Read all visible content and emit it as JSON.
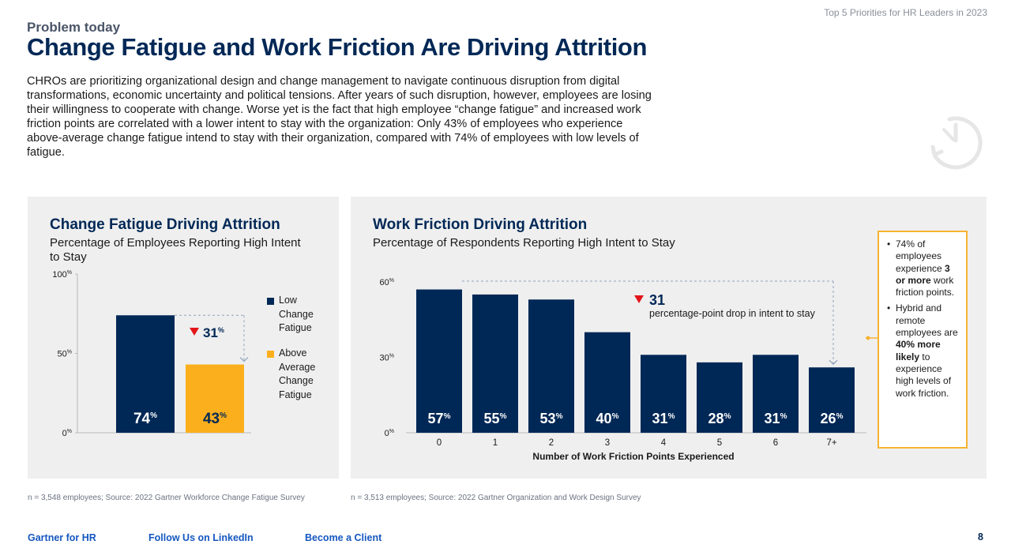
{
  "header": {
    "doc_title": "Top 5 Priorities for HR Leaders in 2023",
    "eyebrow": "Problem today",
    "headline": "Change Fatigue and Work Friction Are Driving Attrition",
    "intro": "CHROs are prioritizing organizational design and change management to navigate continuous disruption from digital transformations, economic uncertainty and political tensions. After years of such disruption, however, employees are losing their willingness to cooperate with change. Worse yet is the fact that high employee “change fatigue” and increased work friction points are correlated with a lower intent to stay with the organization: Only 43% of employees who experience above-average change fatigue intend to stay with their organization, compared with 74% of employees with low levels of fatigue."
  },
  "icons": {
    "timer": "timer-icon",
    "drop_arrow": "down-triangle-icon"
  },
  "colors": {
    "navy": "#002856",
    "amber": "#fbaf1c",
    "drop_red": "#e3151a",
    "panel_bg": "#efefef",
    "link": "#1557c0"
  },
  "chart_data": [
    {
      "type": "bar",
      "title": "Change Fatigue Driving Attrition",
      "subtitle": "Percentage of Employees Reporting High Intent to Stay",
      "categories": [
        "Low Change Fatigue",
        "Above Average Change Fatigue"
      ],
      "values": [
        74,
        43
      ],
      "value_labels": [
        "74",
        "43"
      ],
      "value_suffix": "%",
      "bar_colors": [
        "#002856",
        "#fbaf1c"
      ],
      "yticks": [
        {
          "value": 0,
          "label": "0"
        },
        {
          "value": 50,
          "label": "50"
        },
        {
          "value": 100,
          "label": "100"
        }
      ],
      "ytick_suffix": "%",
      "ylim": [
        0,
        100
      ],
      "legend": [
        "Low Change Fatigue",
        "Above Average Change Fatigue"
      ],
      "legend_lines": [
        [
          "Low",
          "Change",
          "Fatigue"
        ],
        [
          "Above",
          "Average",
          "Change",
          "Fatigue"
        ]
      ],
      "legend_position": "right",
      "drop_annotation": {
        "value": "31",
        "suffix": "%"
      },
      "xlabel": "",
      "ylabel": ""
    },
    {
      "type": "bar",
      "title": "Work Friction Driving Attrition",
      "subtitle": "Percentage of Respondents Reporting High Intent to Stay",
      "categories": [
        "0",
        "1",
        "2",
        "3",
        "4",
        "5",
        "6",
        "7+"
      ],
      "values": [
        57,
        55,
        53,
        40,
        31,
        28,
        31,
        26
      ],
      "value_labels": [
        "57",
        "55",
        "53",
        "40",
        "31",
        "28",
        "31",
        "26"
      ],
      "value_suffix": "%",
      "bar_color": "#002856",
      "yticks": [
        {
          "value": 0,
          "label": "0"
        },
        {
          "value": 30,
          "label": "30"
        },
        {
          "value": 60,
          "label": "60"
        }
      ],
      "ytick_suffix": "%",
      "ylim": [
        0,
        60
      ],
      "xlabel": "Number of Work Friction Points Experienced",
      "ylabel": "",
      "drop_annotation": {
        "value": "31",
        "text": "percentage-point drop in intent to stay"
      }
    }
  ],
  "notes": {
    "n1_a": "74% of employees experience ",
    "n1_b": "3 or more",
    "n1_c": " work friction points.",
    "n2_a": "Hybrid and remote employees are ",
    "n2_b": "40% more likely",
    "n2_c": " to experience high levels of work friction."
  },
  "footnotes": {
    "left": "n = 3,548 employees; Source: 2022 Gartner Workforce Change Fatigue Survey",
    "right": "n = 3,513 employees; Source: 2022 Gartner Organization and Work Design Survey"
  },
  "footer": {
    "link1": "Gartner for HR",
    "link2": "Follow Us on LinkedIn",
    "link3": "Become a Client",
    "page": "8"
  }
}
